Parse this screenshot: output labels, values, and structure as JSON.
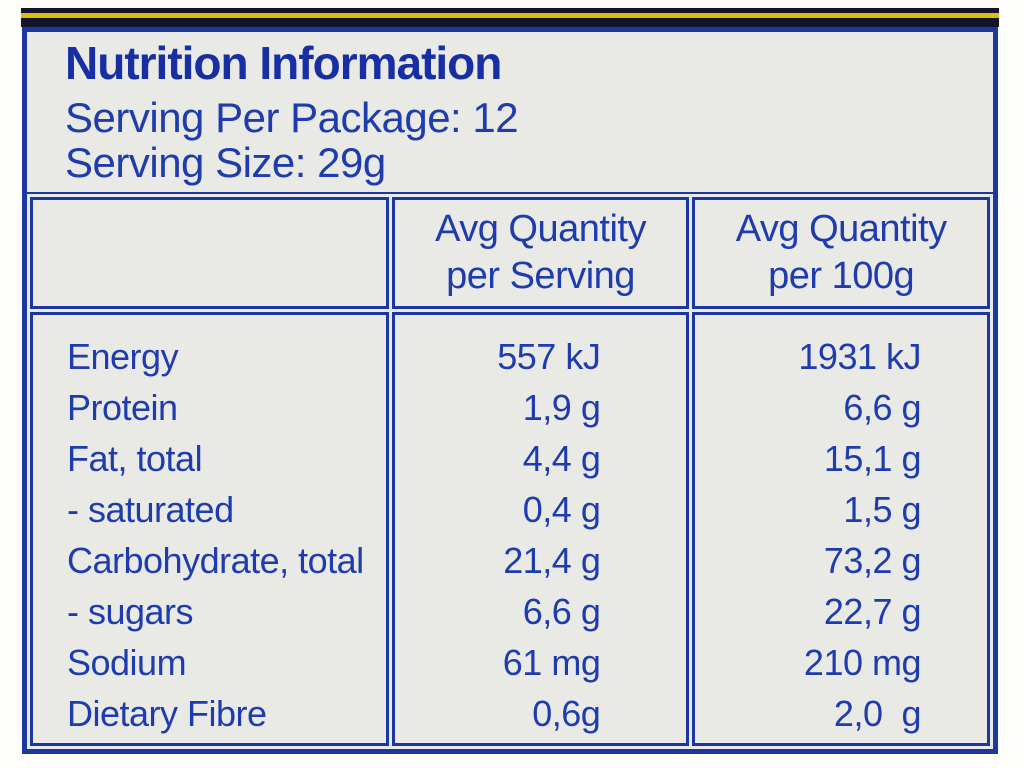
{
  "label": {
    "title": "Nutrition Information",
    "serving_per_package": "Serving Per Package: 12",
    "serving_size": "Serving Size: 29g"
  },
  "table": {
    "col_serving": {
      "line1": "Avg Quantity",
      "line2": "per Serving"
    },
    "col_100g": {
      "line1": "Avg Quantity",
      "line2": "per 100g"
    },
    "rows": [
      {
        "name": "Energy",
        "per_serving": "557 kJ",
        "per_100g": "1931 kJ"
      },
      {
        "name": "Protein",
        "per_serving": "1,9 g",
        "per_100g": "6,6 g"
      },
      {
        "name": "Fat, total",
        "per_serving": "4,4 g",
        "per_100g": "15,1 g"
      },
      {
        "name": "- saturated",
        "per_serving": "0,4 g",
        "per_100g": "1,5 g"
      },
      {
        "name": "Carbohydrate, total",
        "per_serving": "21,4 g",
        "per_100g": "73,2 g"
      },
      {
        "name": "- sugars",
        "per_serving": "6,6 g",
        "per_100g": "22,7 g"
      },
      {
        "name": "Sodium",
        "per_serving": "61 mg",
        "per_100g": "210 mg"
      },
      {
        "name": "Dietary Fibre",
        "per_serving": "0,6g",
        "per_100g": "2,0  g"
      }
    ]
  },
  "colors": {
    "ink_blue": "#1e3cae",
    "title_blue": "#182fa4",
    "border_blue": "#1c38a0",
    "panel_background": "#e9e9e5",
    "edge_yellow": "#dcbe0f",
    "edge_navy": "#14142c",
    "page_background": "#fdfdfb"
  }
}
